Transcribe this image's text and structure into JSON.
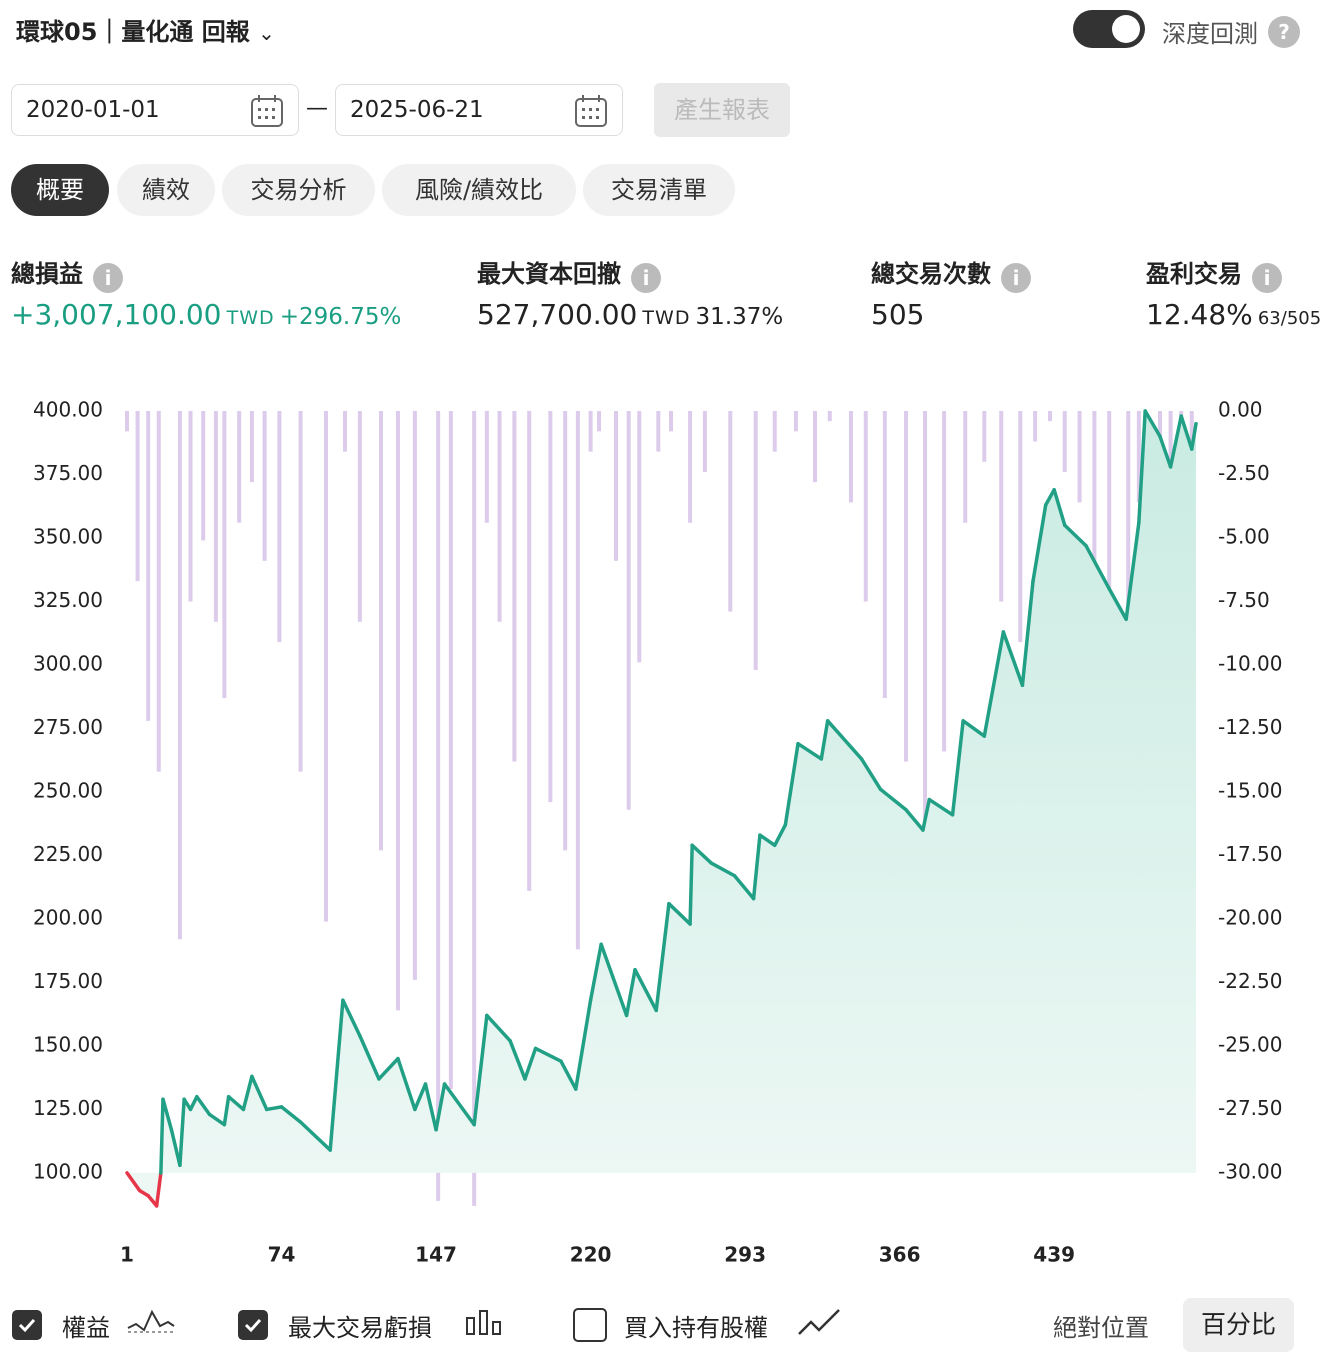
{
  "header": {
    "title": "環球05｜量化通 回報",
    "toggle_label": "深度回測",
    "help": "?"
  },
  "dates": {
    "start": "2020-01-01",
    "separator": "—",
    "end": "2025-06-21",
    "button": "產生報表"
  },
  "tabs": [
    "概要",
    "績效",
    "交易分析",
    "風險/績效比",
    "交易清單"
  ],
  "stats": [
    {
      "label": "總損益",
      "value": "+3,007,100.00",
      "unit": "TWD",
      "extra": "+296.75%"
    },
    {
      "label": "最大資本回撤",
      "value": "527,700.00",
      "unit": "TWD",
      "extra": "31.37%"
    },
    {
      "label": "總交易次數",
      "value": "505"
    },
    {
      "label": "盈利交易",
      "value": "12.48%",
      "extra": "63/505"
    }
  ],
  "chart_data": {
    "type": "line",
    "xlim": [
      1,
      506
    ],
    "xticks": [
      1,
      74,
      147,
      220,
      293,
      366,
      439
    ],
    "ylim": [
      85,
      400
    ],
    "yticks": [
      {
        "value": 100,
        "label": "100.00"
      },
      {
        "value": 125,
        "label": "125.00"
      },
      {
        "value": 150,
        "label": "150.00"
      },
      {
        "value": 175,
        "label": "175.00"
      },
      {
        "value": 200,
        "label": "200.00"
      },
      {
        "value": 225,
        "label": "225.00"
      },
      {
        "value": 250,
        "label": "250.00"
      },
      {
        "value": 275,
        "label": "275.00"
      },
      {
        "value": 300,
        "label": "300.00"
      },
      {
        "value": 325,
        "label": "325.00"
      },
      {
        "value": 350,
        "label": "350.00"
      },
      {
        "value": 375,
        "label": "375.00"
      },
      {
        "value": 400,
        "label": "400.00"
      }
    ],
    "y2lim": [
      -31.5,
      0
    ],
    "y2ticks": [
      {
        "value": 0,
        "label": "0.00"
      },
      {
        "value": -2.5,
        "label": "-2.50"
      },
      {
        "value": -5,
        "label": "-5.00"
      },
      {
        "value": -7.5,
        "label": "-7.50"
      },
      {
        "value": -10,
        "label": "-10.00"
      },
      {
        "value": -12.5,
        "label": "-12.50"
      },
      {
        "value": -15,
        "label": "-15.00"
      },
      {
        "value": -17.5,
        "label": "-17.50"
      },
      {
        "value": -20,
        "label": "-20.00"
      },
      {
        "value": -22.5,
        "label": "-22.50"
      },
      {
        "value": -25,
        "label": "-25.00"
      },
      {
        "value": -27.5,
        "label": "-27.50"
      },
      {
        "value": -30,
        "label": "-30.00"
      }
    ],
    "series": [
      {
        "name": "權益",
        "type": "line",
        "color": "#21a086",
        "negative_color": "#e5364a",
        "fill": "#d5efe8",
        "x": [
          1,
          7,
          11,
          15,
          17,
          18,
          22,
          26,
          28,
          31,
          34,
          40,
          47,
          49,
          56,
          60,
          67,
          74,
          83,
          97,
          103,
          111,
          120,
          129,
          137,
          142,
          147,
          151,
          165,
          171,
          182,
          189,
          194,
          206,
          213,
          220,
          225,
          237,
          241,
          251,
          257,
          267,
          268,
          277,
          288,
          297,
          300,
          307,
          312,
          318,
          329,
          332,
          348,
          357,
          369,
          377,
          380,
          391,
          396,
          406,
          415,
          424,
          429,
          435,
          439,
          444,
          454,
          465,
          473,
          479,
          482,
          489,
          494,
          499,
          504,
          506
        ],
        "values": [
          100,
          93,
          91,
          87,
          100,
          129,
          117,
          103,
          129,
          125,
          130,
          123,
          119,
          130,
          125,
          138,
          125,
          126,
          120,
          109,
          168,
          154,
          137,
          145,
          125,
          135,
          117,
          135,
          119,
          162,
          152,
          137,
          149,
          144,
          133,
          168,
          190,
          162,
          180,
          164,
          206,
          198,
          229,
          222,
          217,
          208,
          233,
          229,
          237,
          269,
          263,
          278,
          263,
          251,
          243,
          235,
          247,
          241,
          278,
          272,
          313,
          292,
          333,
          363,
          369,
          355,
          347,
          330,
          318,
          356,
          400,
          390,
          378,
          398,
          385,
          395
        ]
      },
      {
        "name": "最大交易虧損",
        "type": "bar",
        "axis": "y2",
        "color": "#dccbea",
        "x": [
          1,
          6,
          11,
          16,
          26,
          31,
          37,
          43,
          47,
          54,
          60,
          66,
          73,
          83,
          95,
          104,
          111,
          121,
          129,
          137,
          148,
          154,
          165,
          171,
          177,
          184,
          191,
          201,
          208,
          214,
          220,
          224,
          232,
          238,
          243,
          252,
          258,
          267,
          274,
          286,
          298,
          307,
          317,
          326,
          333,
          343,
          350,
          359,
          369,
          378,
          387,
          397,
          406,
          414,
          423,
          430,
          437,
          444,
          451,
          458,
          465,
          474,
          479,
          482,
          489,
          494,
          499,
          504
        ],
        "values": [
          -0.8,
          -6.7,
          -12.2,
          -14.2,
          -20.8,
          -7.5,
          -5.1,
          -8.3,
          -11.3,
          -4.4,
          -2.8,
          -5.9,
          -9.1,
          -14.2,
          -20.1,
          -1.6,
          -8.3,
          -17.3,
          -23.6,
          -22.4,
          -31.1,
          -26.7,
          -31.3,
          -4.4,
          -8.3,
          -13.8,
          -18.9,
          -15.4,
          -17.3,
          -21.2,
          -1.6,
          -0.8,
          -5.9,
          -15.7,
          -9.9,
          -1.6,
          -0.8,
          -4.4,
          -2.4,
          -7.9,
          -10.2,
          -1.6,
          -0.8,
          -2.8,
          -0.4,
          -3.6,
          -7.5,
          -11.3,
          -13.8,
          -16.1,
          -13.4,
          -4.4,
          -2,
          -7.5,
          -9.1,
          -1.2,
          -0.4,
          -2.4,
          -3.6,
          -8.3,
          -12.2,
          -14.2,
          -3.6,
          0,
          -1.6,
          -3.1,
          -6.7,
          -4.7
        ]
      }
    ]
  },
  "legend": {
    "equity": "權益",
    "drawdown": "最大交易虧損",
    "buy_hold": "買入持有股權",
    "absolute": "絕對位置",
    "percent": "百分比"
  }
}
